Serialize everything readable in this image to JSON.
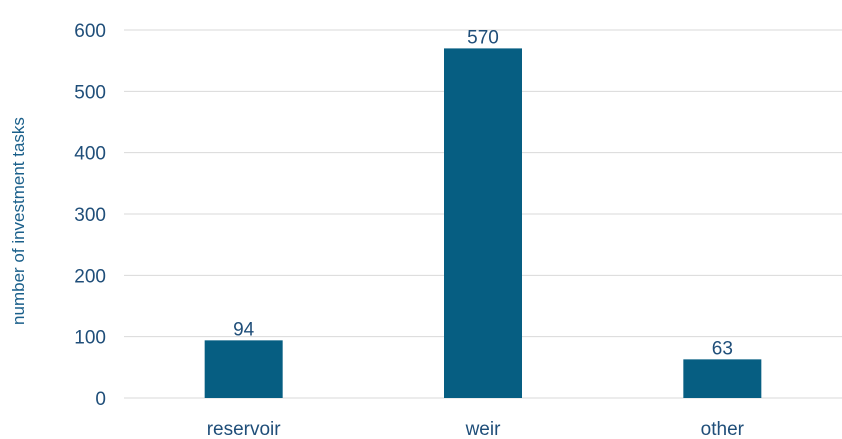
{
  "chart_data": {
    "type": "bar",
    "categories": [
      "reservoir",
      "weir",
      "other"
    ],
    "values": [
      94,
      570,
      63
    ],
    "data_labels": [
      "94",
      "570",
      "63"
    ],
    "title": "",
    "xlabel": "",
    "ylabel": "number of investment tasks",
    "ylim": [
      0,
      600
    ],
    "yticks": [
      "0",
      "100",
      "200",
      "300",
      "400",
      "500",
      "600"
    ],
    "grid": true,
    "legend": "none",
    "bar_color": "#065E82"
  }
}
